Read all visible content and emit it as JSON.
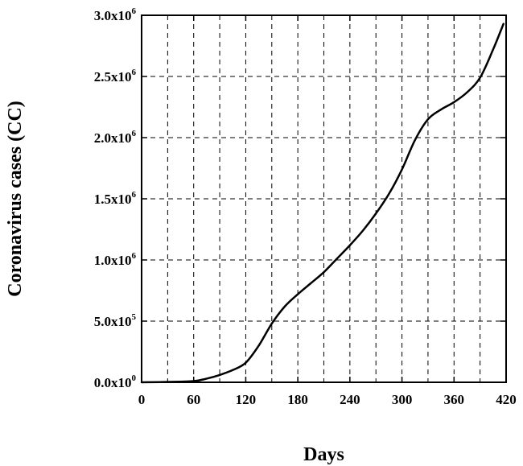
{
  "chart_data": {
    "type": "line",
    "xlabel": "Days",
    "ylabel": "Coronavirus cases (CC)",
    "xlim": [
      0,
      420
    ],
    "ylim": [
      0,
      3000000
    ],
    "x_ticks": [
      0,
      60,
      120,
      180,
      240,
      300,
      360,
      420
    ],
    "x_tick_labels": [
      "0",
      "60",
      "120",
      "180",
      "240",
      "300",
      "360",
      "420"
    ],
    "y_ticks": [
      0,
      500000,
      1000000,
      1500000,
      2000000,
      2500000,
      3000000
    ],
    "y_tick_labels": [
      {
        "mantissa": "0.0x10",
        "exp": "0"
      },
      {
        "mantissa": "5.0x10",
        "exp": "5"
      },
      {
        "mantissa": "1.0x10",
        "exp": "6"
      },
      {
        "mantissa": "1.5x10",
        "exp": "6"
      },
      {
        "mantissa": "2.0x10",
        "exp": "6"
      },
      {
        "mantissa": "2.5x10",
        "exp": "6"
      },
      {
        "mantissa": "3.0x10",
        "exp": "6"
      }
    ],
    "grid_x": [
      30,
      60,
      90,
      120,
      150,
      180,
      210,
      240,
      270,
      300,
      330,
      360,
      390
    ],
    "grid_y": [
      500000,
      1000000,
      1500000,
      2000000,
      2500000
    ],
    "grid": true,
    "series": [
      {
        "x": [
          0,
          30,
          60,
          75,
          90,
          105,
          120,
          135,
          150,
          165,
          180,
          195,
          210,
          225,
          240,
          255,
          270,
          285,
          300,
          315,
          330,
          345,
          360,
          375,
          390,
          405,
          417
        ],
        "y": [
          0,
          3000,
          10000,
          30000,
          60000,
          100000,
          160000,
          300000,
          480000,
          620000,
          720000,
          810000,
          900000,
          1010000,
          1120000,
          1240000,
          1380000,
          1540000,
          1740000,
          1980000,
          2150000,
          2230000,
          2290000,
          2370000,
          2490000,
          2720000,
          2930000
        ]
      }
    ]
  }
}
